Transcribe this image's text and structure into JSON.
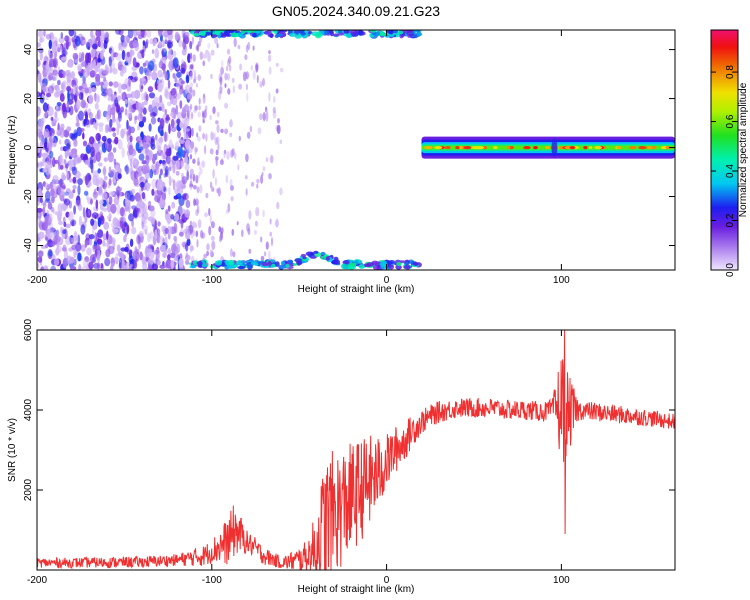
{
  "title": "GN05.2024.340.09.21.G23",
  "chart_data": [
    {
      "type": "heatmap",
      "xlabel": "Height of straight line (km)",
      "ylabel": "Frequency (Hz)",
      "xlim": [
        -200,
        165
      ],
      "ylim": [
        -50,
        48
      ],
      "xticks": [
        -200,
        -100,
        0,
        100
      ],
      "yticks": [
        -40,
        -20,
        0,
        20,
        40
      ],
      "colorbar": {
        "label": "Normalized spectral amplitude",
        "range": [
          0.0,
          0.97
        ],
        "ticks": [
          0.0,
          0.2,
          0.4,
          0.6,
          0.8
        ]
      },
      "features": [
        {
          "region": "diffuse noise",
          "x_range": [
            -200,
            -112
          ],
          "freq_range": [
            -50,
            48
          ],
          "amplitude": 0.05
        },
        {
          "region": "sparse noise",
          "x_range": [
            -112,
            -60
          ],
          "freq_range": [
            -48,
            45
          ],
          "amplitude": 0.03
        },
        {
          "region": "aliased tone low edge",
          "x_range": [
            -112,
            20
          ],
          "freq_range": [
            -50,
            -42
          ],
          "amplitude": 0.3
        },
        {
          "region": "aliased tone high edge",
          "x_range": [
            -112,
            20
          ],
          "freq_range": [
            45,
            48
          ],
          "amplitude": 0.3
        },
        {
          "region": "carrier line",
          "x_range": [
            20,
            165
          ],
          "freq_range": [
            -2,
            2
          ],
          "amplitude": 0.9
        }
      ]
    },
    {
      "type": "line",
      "xlabel": "Height of straight line (km)",
      "ylabel": "SNR (10 * v/v)",
      "xlim": [
        -200,
        165
      ],
      "ylim": [
        0,
        6000
      ],
      "xticks": [
        -200,
        -100,
        0,
        100
      ],
      "yticks": [
        2000,
        4000,
        6000
      ],
      "color": "#f03030",
      "series": [
        {
          "points": [
            [
              -200,
              180
            ],
            [
              -180,
              180
            ],
            [
              -160,
              190
            ],
            [
              -140,
              200
            ],
            [
              -120,
              250
            ],
            [
              -105,
              350
            ],
            [
              -95,
              600
            ],
            [
              -90,
              750
            ],
            [
              -87,
              1000
            ],
            [
              -84,
              900
            ],
            [
              -80,
              700
            ],
            [
              -75,
              550
            ],
            [
              -70,
              350
            ],
            [
              -60,
              180
            ],
            [
              -50,
              250
            ],
            [
              -42,
              450
            ],
            [
              -38,
              800
            ],
            [
              -35,
              1200
            ],
            [
              -30,
              1400
            ],
            [
              -25,
              1600
            ],
            [
              -20,
              1800
            ],
            [
              -10,
              2200
            ],
            [
              -5,
              2400
            ],
            [
              0,
              2700
            ],
            [
              5,
              3000
            ],
            [
              10,
              3200
            ],
            [
              15,
              3500
            ],
            [
              20,
              3700
            ],
            [
              25,
              3850
            ],
            [
              30,
              3950
            ],
            [
              35,
              4000
            ],
            [
              40,
              4050
            ],
            [
              50,
              4050
            ],
            [
              60,
              4050
            ],
            [
              70,
              4000
            ],
            [
              80,
              4000
            ],
            [
              90,
              3950
            ],
            [
              96,
              4050
            ],
            [
              100,
              4100
            ],
            [
              104,
              3900
            ],
            [
              110,
              4000
            ],
            [
              120,
              3950
            ],
            [
              130,
              3900
            ],
            [
              140,
              3850
            ],
            [
              150,
              3800
            ],
            [
              165,
              3700
            ]
          ],
          "noise": [
            [
              -200,
              120
            ],
            [
              -120,
              150
            ],
            [
              -100,
              300
            ],
            [
              -88,
              700
            ],
            [
              -80,
              300
            ],
            [
              -60,
              150
            ],
            [
              -45,
              400
            ],
            [
              -35,
              1700
            ],
            [
              -20,
              1400
            ],
            [
              -10,
              1200
            ],
            [
              0,
              700
            ],
            [
              10,
              500
            ],
            [
              20,
              300
            ],
            [
              40,
              250
            ],
            [
              95,
              250
            ],
            [
              100,
              1500
            ],
            [
              104,
              1000
            ],
            [
              110,
              250
            ],
            [
              165,
              200
            ]
          ],
          "spike": {
            "x": 102,
            "max": 6000,
            "min": 900
          }
        }
      ]
    }
  ]
}
